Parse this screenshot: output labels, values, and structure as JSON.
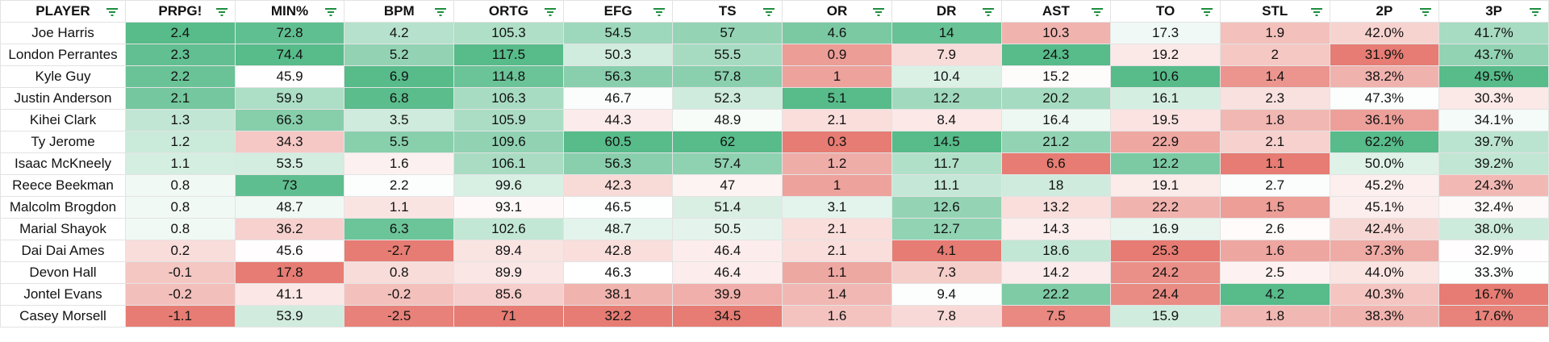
{
  "table": {
    "columns": [
      {
        "label": "PLAYER"
      },
      {
        "label": "PRPG!"
      },
      {
        "label": "MIN%"
      },
      {
        "label": "BPM"
      },
      {
        "label": "ORTG"
      },
      {
        "label": "EFG"
      },
      {
        "label": "TS"
      },
      {
        "label": "OR"
      },
      {
        "label": "DR"
      },
      {
        "label": "AST"
      },
      {
        "label": "TO",
        "reverse": true
      },
      {
        "label": "STL"
      },
      {
        "label": "2P"
      },
      {
        "label": "3P"
      }
    ],
    "rows": [
      [
        "Joe Harris",
        "2.4",
        "72.8",
        "4.2",
        "105.3",
        "54.5",
        "57",
        "4.6",
        "14",
        "10.3",
        "17.3",
        "1.9",
        "42.0%",
        "41.7%"
      ],
      [
        "London Perrantes",
        "2.3",
        "74.4",
        "5.2",
        "117.5",
        "50.3",
        "55.5",
        "0.9",
        "7.9",
        "24.3",
        "19.2",
        "2",
        "31.9%",
        "43.7%"
      ],
      [
        "Kyle Guy",
        "2.2",
        "45.9",
        "6.9",
        "114.8",
        "56.3",
        "57.8",
        "1",
        "10.4",
        "15.2",
        "10.6",
        "1.4",
        "38.2%",
        "49.5%"
      ],
      [
        "Justin Anderson",
        "2.1",
        "59.9",
        "6.8",
        "106.3",
        "46.7",
        "52.3",
        "5.1",
        "12.2",
        "20.2",
        "16.1",
        "2.3",
        "47.3%",
        "30.3%"
      ],
      [
        "Kihei Clark",
        "1.3",
        "66.3",
        "3.5",
        "105.9",
        "44.3",
        "48.9",
        "2.1",
        "8.4",
        "16.4",
        "19.5",
        "1.8",
        "36.1%",
        "34.1%"
      ],
      [
        "Ty Jerome",
        "1.2",
        "34.3",
        "5.5",
        "109.6",
        "60.5",
        "62",
        "0.3",
        "14.5",
        "21.2",
        "22.9",
        "2.1",
        "62.2%",
        "39.7%"
      ],
      [
        "Isaac McKneely",
        "1.1",
        "53.5",
        "1.6",
        "106.1",
        "56.3",
        "57.4",
        "1.2",
        "11.7",
        "6.6",
        "12.2",
        "1.1",
        "50.0%",
        "39.2%"
      ],
      [
        "Reece Beekman",
        "0.8",
        "73",
        "2.2",
        "99.6",
        "42.3",
        "47",
        "1",
        "11.1",
        "18",
        "19.1",
        "2.7",
        "45.2%",
        "24.3%"
      ],
      [
        "Malcolm Brogdon",
        "0.8",
        "48.7",
        "1.1",
        "93.1",
        "46.5",
        "51.4",
        "3.1",
        "12.6",
        "13.2",
        "22.2",
        "1.5",
        "45.1%",
        "32.4%"
      ],
      [
        "Marial Shayok",
        "0.8",
        "36.2",
        "6.3",
        "102.6",
        "48.7",
        "50.5",
        "2.1",
        "12.7",
        "14.3",
        "16.9",
        "2.6",
        "42.4%",
        "38.0%"
      ],
      [
        "Dai Dai Ames",
        "0.2",
        "45.6",
        "-2.7",
        "89.4",
        "42.8",
        "46.4",
        "2.1",
        "4.1",
        "18.6",
        "25.3",
        "1.6",
        "37.3%",
        "32.9%"
      ],
      [
        "Devon Hall",
        "-0.1",
        "17.8",
        "0.8",
        "89.9",
        "46.3",
        "46.4",
        "1.1",
        "7.3",
        "14.2",
        "24.2",
        "2.5",
        "44.0%",
        "33.3%"
      ],
      [
        "Jontel Evans",
        "-0.2",
        "41.1",
        "-0.2",
        "85.6",
        "38.1",
        "39.9",
        "1.4",
        "9.4",
        "22.2",
        "24.4",
        "4.2",
        "40.3%",
        "16.7%"
      ],
      [
        "Casey Morsell",
        "-1.1",
        "53.9",
        "-2.5",
        "71",
        "32.2",
        "34.5",
        "1.6",
        "7.8",
        "7.5",
        "15.9",
        "1.8",
        "38.3%",
        "17.6%"
      ]
    ],
    "color_scale": {
      "low": "#e67c73",
      "mid": "#ffffff",
      "high": "#57bb8a"
    }
  }
}
